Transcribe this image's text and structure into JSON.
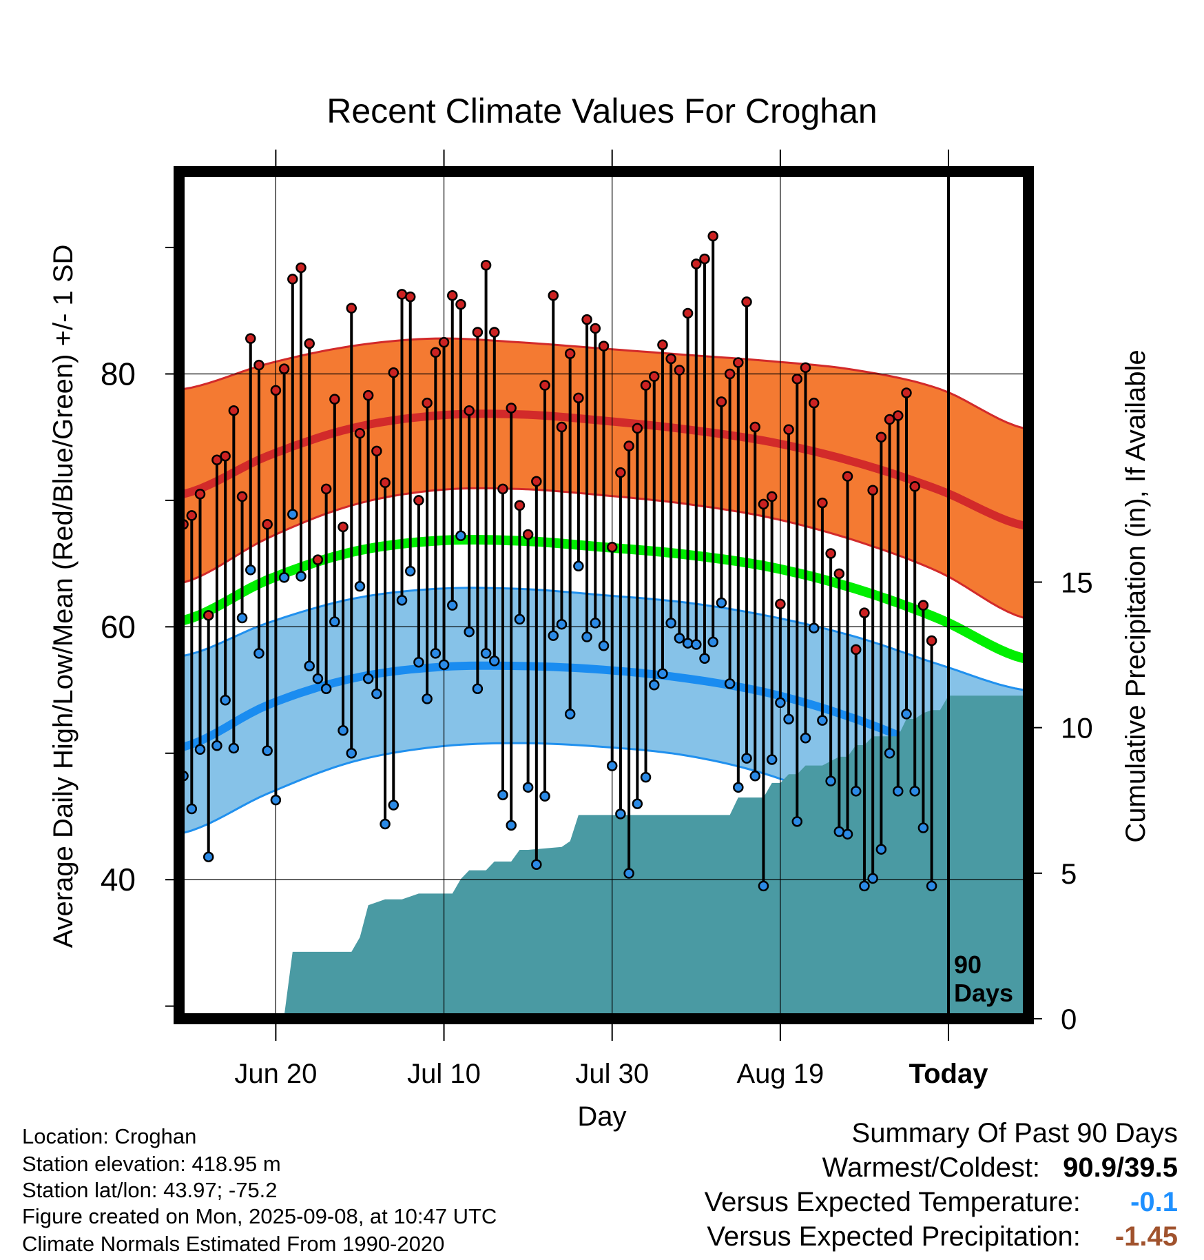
{
  "title": "Recent Climate Values For Croghan",
  "xlabel": "Day",
  "info": {
    "location": "Location: Croghan",
    "elevation": "Station elevation: 418.95 m",
    "latlon": "Station lat/lon: 43.97; -75.2",
    "created": "Figure created on Mon, 2025-09-08, at 10:47 UTC",
    "normals": "Climate Normals Estimated From 1990-2020"
  },
  "summary": {
    "title": "Summary Of Past 90 Days",
    "warm_cold_label": "Warmest/Coldest:",
    "warm_cold_value": "90.9/39.5",
    "temp_label": "Versus Expected Temperature:",
    "temp_value": "-0.1",
    "temp_color": "#1e90ff",
    "precip_label": "Versus Expected Precipitation:",
    "precip_value": "-1.45",
    "precip_color": "#a0522d"
  },
  "chart_data": {
    "type": "line",
    "ylabel": "Average Daily High/Low/Mean (Red/Blue/Green) +/- 1 SD",
    "y2label": "Cumulative Precipitation (in), If Available",
    "x_ticks": [
      "Jun 20",
      "Jul 10",
      "Jul 30",
      "Aug 19",
      "Today"
    ],
    "x_tick_days": [
      11,
      31,
      51,
      71,
      91
    ],
    "xlim": [
      -0.5,
      100.5
    ],
    "ylim": [
      29,
      96
    ],
    "y_ticks": [
      40,
      60,
      80
    ],
    "y_minor_ticks": [
      30,
      50,
      70,
      90
    ],
    "y2lim": [
      0,
      29.1
    ],
    "y2_ticks": [
      0,
      5,
      10,
      15
    ],
    "grid": true,
    "today_marker": {
      "day": 91,
      "label_line1": "90",
      "label_line2": "Days"
    },
    "colors": {
      "high_band": "#f47a32",
      "high_band_edge": "#d22a2a",
      "high_mean": "#d22a2a",
      "low_band": "#86c2e8",
      "low_band_edge": "#2090ee",
      "low_mean": "#1a8cf0",
      "mean": "#00ee00",
      "precip": "#4a9aa3",
      "high_dot": "#cc2222",
      "low_dot": "#2b8ae6"
    },
    "normals": {
      "days": [
        0,
        10,
        20,
        30,
        40,
        50,
        60,
        70,
        80,
        90,
        100
      ],
      "high_mean": [
        70.5,
        73.5,
        75.7,
        76.7,
        76.8,
        76.3,
        75.6,
        74.6,
        73.0,
        70.8,
        68.0
      ],
      "high_sd_upper": [
        78.8,
        80.8,
        82.2,
        82.8,
        82.5,
        82.0,
        81.5,
        81.0,
        80.3,
        78.8,
        75.7
      ],
      "high_sd_lower": [
        63.5,
        67.0,
        69.6,
        70.8,
        70.9,
        70.4,
        69.7,
        68.6,
        66.8,
        64.3,
        60.7
      ],
      "mean": [
        60.5,
        63.7,
        65.9,
        66.8,
        66.8,
        66.3,
        65.7,
        64.7,
        63.0,
        60.6,
        57.5
      ],
      "low_mean": [
        50.5,
        53.8,
        55.9,
        56.8,
        56.9,
        56.6,
        55.9,
        54.7,
        52.7,
        50.0,
        46.8
      ],
      "low_sd_upper": [
        57.7,
        60.3,
        62.2,
        63.0,
        63.0,
        62.5,
        61.9,
        60.8,
        59.2,
        57.0,
        55.0
      ],
      "low_sd_lower": [
        43.7,
        46.8,
        49.3,
        50.5,
        50.8,
        50.5,
        49.8,
        48.2,
        45.5,
        41.7,
        37.0
      ]
    },
    "daily": {
      "start_day": 0,
      "highs": [
        68.1,
        68.8,
        70.5,
        60.9,
        73.2,
        73.5,
        77.1,
        70.3,
        82.8,
        80.7,
        68.1,
        78.7,
        80.4,
        87.5,
        88.4,
        82.4,
        65.3,
        70.9,
        78.0,
        67.9,
        85.2,
        75.3,
        78.3,
        73.9,
        71.4,
        80.1,
        86.3,
        86.1,
        70.0,
        77.7,
        81.7,
        82.5,
        86.2,
        85.5,
        77.1,
        83.3,
        88.6,
        83.3,
        70.9,
        77.3,
        69.6,
        67.3,
        71.5,
        79.1,
        86.2,
        75.8,
        81.6,
        78.1,
        84.3,
        83.6,
        82.2,
        66.3,
        72.2,
        74.3,
        75.7,
        79.1,
        79.8,
        82.3,
        81.2,
        80.3,
        84.8,
        88.7,
        89.1,
        90.9,
        77.8,
        80.0,
        80.9,
        85.7,
        75.8,
        69.7,
        70.3,
        61.8,
        75.6,
        79.6,
        80.5,
        77.7,
        69.8,
        65.8,
        64.2,
        71.9,
        58.2,
        61.1,
        70.8,
        75.0,
        76.4,
        76.7,
        78.5,
        71.1,
        61.7,
        58.9
      ],
      "lows": [
        48.2,
        45.6,
        50.3,
        41.8,
        50.6,
        54.2,
        50.4,
        60.7,
        64.5,
        57.9,
        50.2,
        46.3,
        63.9,
        68.9,
        64.0,
        56.9,
        55.9,
        55.1,
        60.4,
        51.8,
        50.0,
        63.2,
        55.9,
        54.7,
        44.4,
        45.9,
        62.1,
        64.4,
        57.2,
        54.3,
        57.9,
        57.0,
        61.7,
        67.2,
        59.6,
        55.1,
        57.9,
        57.3,
        46.7,
        44.3,
        60.6,
        47.3,
        41.2,
        46.6,
        59.3,
        60.2,
        53.1,
        64.8,
        59.2,
        60.3,
        58.5,
        49.0,
        45.2,
        40.5,
        46.0,
        48.1,
        55.4,
        56.3,
        60.3,
        59.1,
        58.7,
        58.6,
        57.5,
        58.8,
        61.9,
        55.5,
        47.3,
        49.6,
        48.2,
        39.5,
        49.5,
        54.0,
        52.7,
        44.6,
        51.2,
        59.9,
        52.6,
        47.8,
        43.8,
        43.6,
        47.0,
        39.5,
        40.1,
        42.4,
        50.0,
        47.0,
        53.1,
        47.0,
        44.1,
        39.5
      ]
    },
    "precip_cumulative": {
      "days": [
        0,
        10,
        11,
        12,
        13,
        20,
        21,
        22,
        24,
        26,
        27,
        28,
        32,
        33,
        34,
        36,
        37,
        39,
        40,
        41,
        45,
        46,
        47,
        48,
        65,
        66,
        69,
        70,
        71,
        72,
        73,
        74,
        75,
        76,
        78,
        79,
        80,
        81,
        82,
        85,
        86,
        87,
        88,
        89,
        90,
        91,
        100
      ],
      "values": [
        0.0,
        0.0,
        0.1,
        0.1,
        2.3,
        2.3,
        2.8,
        3.9,
        4.1,
        4.1,
        4.2,
        4.3,
        4.3,
        4.8,
        5.1,
        5.1,
        5.4,
        5.4,
        5.8,
        5.8,
        5.9,
        6.1,
        7.0,
        7.0,
        7.0,
        7.6,
        7.6,
        8.1,
        8.1,
        8.4,
        8.4,
        8.7,
        8.7,
        8.7,
        9.0,
        9.0,
        9.4,
        9.4,
        9.7,
        9.7,
        10.3,
        10.3,
        10.5,
        10.6,
        10.6,
        11.1,
        11.1
      ]
    }
  }
}
